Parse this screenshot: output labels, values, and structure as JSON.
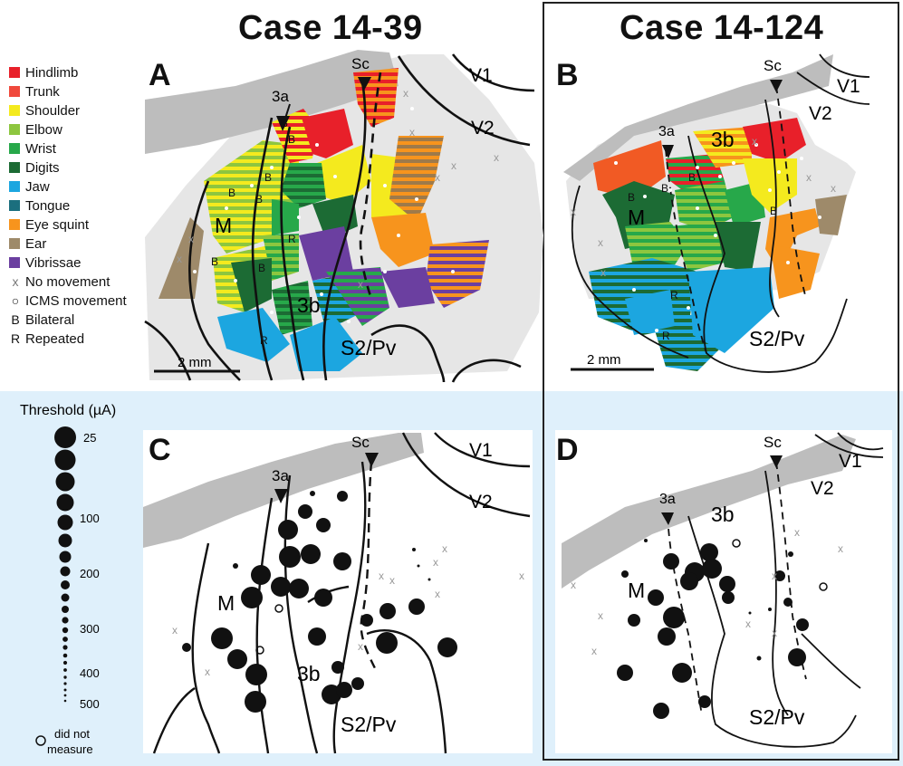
{
  "titles": {
    "left": "Case 14-39",
    "right": "Case 14-124"
  },
  "panels": {
    "a": "A",
    "b": "B",
    "c": "C",
    "d": "D"
  },
  "legend": [
    {
      "label": "Hindlimb",
      "color": "#e8202a"
    },
    {
      "label": "Trunk",
      "color": "#f0493c"
    },
    {
      "label": "Shoulder",
      "color": "#f4ea1e"
    },
    {
      "label": "Elbow",
      "color": "#8dc63f"
    },
    {
      "label": "Wrist",
      "color": "#27a84a"
    },
    {
      "label": "Digits",
      "color": "#1c6b34"
    },
    {
      "label": "Jaw",
      "color": "#1ca6e0"
    },
    {
      "label": "Tongue",
      "color": "#1b6f7e"
    },
    {
      "label": "Eye squint",
      "color": "#f7941d"
    },
    {
      "label": "Ear",
      "color": "#9e8a6a"
    },
    {
      "label": "Vibrissae",
      "color": "#6b3fa0"
    }
  ],
  "legend_symbols": [
    {
      "symbol": "x",
      "label": "No movement"
    },
    {
      "symbol": "○",
      "label": "ICMS movement"
    },
    {
      "symbol": "B",
      "label": "Bilateral"
    },
    {
      "symbol": "R",
      "label": "Repeated"
    }
  ],
  "region_labels": {
    "sc": "Sc",
    "v1": "V1",
    "v2": "V2",
    "a3": "3a",
    "b3": "3b",
    "m": "M",
    "s2pv": "S2/Pv"
  },
  "scale_bar": "2 mm",
  "threshold": {
    "title": "Threshold (µA)",
    "ticks": [
      "25",
      "100",
      "200",
      "300",
      "400",
      "500"
    ],
    "did_not_measure": "did not measure",
    "did_not_measure_line1": "did not",
    "did_not_measure_line2": "measure"
  },
  "map_letters": {
    "b": "B",
    "r": "R",
    "x": "x"
  }
}
